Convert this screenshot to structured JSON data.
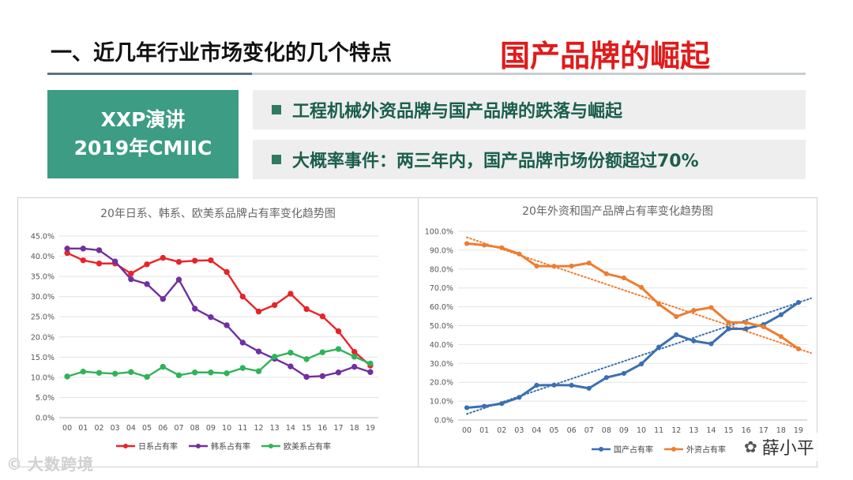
{
  "header": {
    "title": "一、近几年行业市场变化的几个特点",
    "highlight": "国产品牌的崛起"
  },
  "speech": {
    "line1": "XXP演讲",
    "line2": "2019年CMIIC"
  },
  "bullets": [
    "工程机械外资品牌与国产品牌的跌落与崛起",
    "大概率事件：两三年内，国产品牌市场份额超过70%"
  ],
  "watermarks": {
    "left": "大数跨境",
    "right": "薛小平"
  },
  "colors": {
    "accent_green": "#3c9c84",
    "title_red": "#e11b1b",
    "japan": "#e8232a",
    "korea": "#7030a0",
    "euro_us": "#2fb35a",
    "domestic": "#3b6fb0",
    "foreign": "#ed7d31"
  },
  "chart_data": [
    {
      "type": "line",
      "title": "20年日系、韩系、欧美系品牌占有率变化趋势图",
      "categories": [
        "00",
        "01",
        "02",
        "03",
        "04",
        "05",
        "06",
        "07",
        "08",
        "09",
        "10",
        "11",
        "12",
        "13",
        "14",
        "15",
        "16",
        "17",
        "18",
        "19"
      ],
      "ylim": [
        0,
        45
      ],
      "yticks": [
        "0.0%",
        "5.0%",
        "10.0%",
        "15.0%",
        "20.0%",
        "25.0%",
        "30.0%",
        "35.0%",
        "40.0%",
        "45.0%"
      ],
      "ytick_values": [
        0,
        5,
        10,
        15,
        20,
        25,
        30,
        35,
        40,
        45
      ],
      "legend_position": "bottom",
      "series": [
        {
          "name": "日系占有率",
          "values": [
            40.8,
            39.0,
            38.2,
            38.2,
            35.7,
            38.0,
            39.6,
            38.6,
            38.9,
            39.0,
            36.1,
            30.0,
            26.3,
            27.9,
            30.7,
            26.9,
            25.1,
            21.4,
            16.3,
            12.9
          ]
        },
        {
          "name": "韩系占有率",
          "values": [
            41.9,
            41.9,
            41.5,
            38.7,
            34.3,
            33.1,
            29.4,
            34.2,
            27.0,
            24.9,
            22.9,
            18.6,
            16.4,
            14.6,
            12.7,
            10.1,
            10.3,
            11.2,
            12.6,
            11.3
          ]
        },
        {
          "name": "欧美系占有率",
          "values": [
            10.2,
            11.4,
            11.1,
            10.9,
            11.3,
            10.1,
            12.6,
            10.5,
            11.2,
            11.2,
            11.0,
            12.3,
            11.5,
            15.1,
            16.1,
            14.5,
            16.2,
            17.0,
            15.1,
            13.4
          ]
        }
      ]
    },
    {
      "type": "line",
      "title": "20年外资和国产品牌占有率变化趋势图",
      "categories": [
        "00",
        "01",
        "02",
        "03",
        "04",
        "05",
        "06",
        "07",
        "08",
        "09",
        "10",
        "11",
        "12",
        "13",
        "14",
        "15",
        "16",
        "17",
        "18",
        "19"
      ],
      "ylim": [
        0,
        100
      ],
      "yticks": [
        "0.0%",
        "10.0%",
        "20.0%",
        "30.0%",
        "40.0%",
        "50.0%",
        "60.0%",
        "70.0%",
        "80.0%",
        "90.0%",
        "100.0%"
      ],
      "ytick_values": [
        0,
        10,
        20,
        30,
        40,
        50,
        60,
        70,
        80,
        90,
        100
      ],
      "legend_position": "bottom",
      "series": [
        {
          "name": "国产占有率",
          "values": [
            6.5,
            7.3,
            8.7,
            12.0,
            18.4,
            18.5,
            18.4,
            16.8,
            22.5,
            24.7,
            29.7,
            38.6,
            45.2,
            41.9,
            40.4,
            48.3,
            48.4,
            50.6,
            55.8,
            62.3
          ],
          "trend": [
            3.2,
            64.5
          ]
        },
        {
          "name": "外资占有率",
          "values": [
            93.5,
            92.7,
            91.3,
            88.0,
            81.6,
            81.5,
            81.6,
            83.2,
            77.5,
            75.3,
            70.3,
            61.4,
            54.8,
            58.1,
            59.6,
            51.7,
            51.6,
            49.4,
            44.2,
            37.7
          ],
          "trend": [
            96.8,
            35.5
          ]
        }
      ]
    }
  ]
}
